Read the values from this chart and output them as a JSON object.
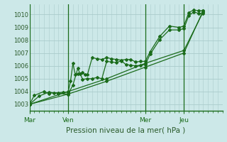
{
  "bg_color": "#cce8e8",
  "grid_color": "#aacccc",
  "line_color": "#1a6b1a",
  "text_color": "#2a5a2a",
  "xlabel": "Pression niveau de la mer( hPa )",
  "ylim": [
    1002.5,
    1010.8
  ],
  "yticks": [
    1003,
    1004,
    1005,
    1006,
    1007,
    1008,
    1009,
    1010
  ],
  "xtick_labels": [
    "Mar",
    "Ven",
    "Mer",
    "Jeu"
  ],
  "xtick_positions": [
    0,
    16,
    48,
    64
  ],
  "xmax": 80,
  "vlines": [
    0,
    16,
    48,
    64
  ],
  "series": [
    [
      0,
      1003.0,
      2,
      1003.7,
      6,
      1004.0,
      8,
      1003.85,
      10,
      1003.9,
      12,
      1003.9,
      14,
      1003.95,
      16,
      1003.95,
      17,
      1004.8,
      18,
      1006.2,
      19,
      1005.3,
      20,
      1005.4,
      21,
      1005.4,
      22,
      1005.5,
      23,
      1005.3,
      24,
      1005.3,
      26,
      1006.65,
      28,
      1006.55,
      30,
      1006.5,
      32,
      1006.65,
      34,
      1006.55,
      36,
      1006.5,
      38,
      1006.45,
      40,
      1006.5,
      42,
      1006.5,
      44,
      1006.3,
      46,
      1006.35,
      48,
      1006.35,
      50,
      1007.1,
      54,
      1008.3,
      58,
      1009.1,
      62,
      1009.0,
      64,
      1009.1,
      66,
      1010.15,
      68,
      1010.35,
      70,
      1010.3,
      72,
      1010.3
    ],
    [
      0,
      1003.0,
      4,
      1003.65,
      8,
      1003.95,
      12,
      1003.85,
      16,
      1003.8,
      18,
      1004.5,
      20,
      1005.8,
      22,
      1004.95,
      24,
      1005.0,
      26,
      1005.0,
      28,
      1005.1,
      30,
      1005.0,
      32,
      1006.35,
      34,
      1006.3,
      36,
      1006.25,
      38,
      1006.4,
      40,
      1006.1,
      42,
      1006.05,
      44,
      1006.0,
      46,
      1006.05,
      48,
      1006.1,
      50,
      1006.9,
      54,
      1008.05,
      58,
      1008.8,
      62,
      1008.8,
      64,
      1008.9,
      66,
      1009.9,
      68,
      1010.2,
      70,
      1010.1,
      72,
      1010.1
    ],
    [
      0,
      1003.0,
      16,
      1004.0,
      32,
      1005.0,
      48,
      1006.2,
      64,
      1007.2,
      72,
      1010.2
    ],
    [
      0,
      1003.0,
      16,
      1003.8,
      32,
      1004.8,
      48,
      1005.9,
      64,
      1007.0,
      72,
      1010.3
    ]
  ]
}
